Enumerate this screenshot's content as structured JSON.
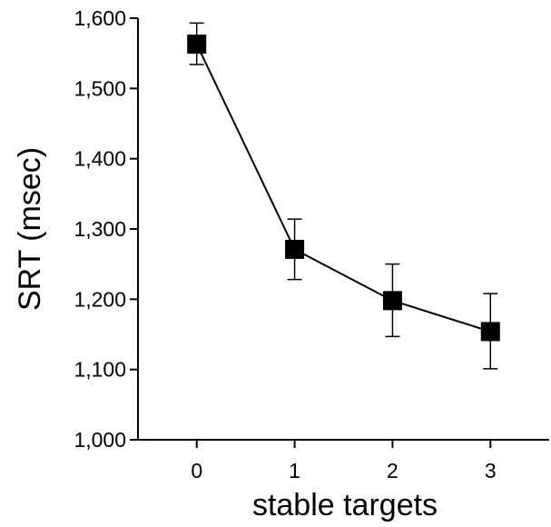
{
  "chart_data": {
    "type": "line",
    "title": "",
    "xlabel": "stable targets",
    "ylabel": "SRT (msec)",
    "x": [
      0,
      1,
      2,
      3
    ],
    "x_tick_labels": [
      "0",
      "1",
      "2",
      "3"
    ],
    "xlim": [
      -0.6,
      3.6
    ],
    "ylim": [
      1000,
      1600
    ],
    "y_ticks": [
      1000,
      1100,
      1200,
      1300,
      1400,
      1500,
      1600
    ],
    "y_tick_labels": [
      "1,000",
      "1,100",
      "1,200",
      "1,300",
      "1,400",
      "1,500",
      "1,600"
    ],
    "grid": false,
    "legend": "none",
    "series": [
      {
        "values": [
          1563,
          1271,
          1198,
          1154
        ],
        "error_upper": [
          1593,
          1314,
          1250,
          1208
        ],
        "error_lower": [
          1534,
          1228,
          1147,
          1101
        ],
        "marker": "square",
        "color": "#000000"
      }
    ]
  }
}
